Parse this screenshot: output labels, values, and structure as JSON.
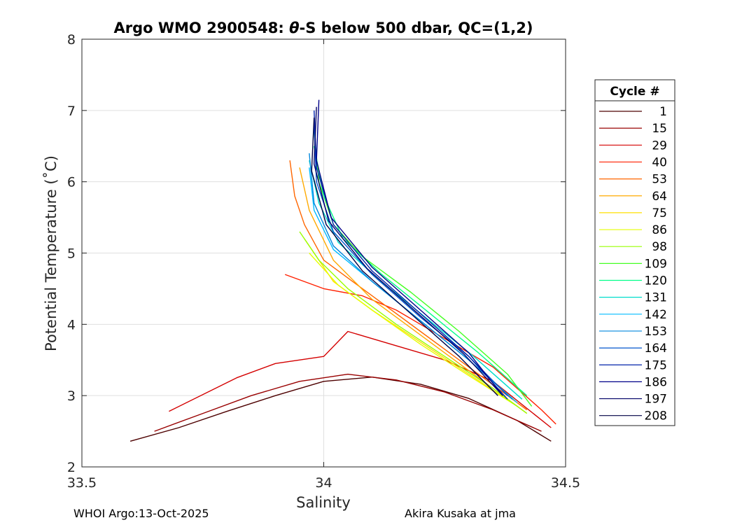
{
  "footer": {
    "left": "WHOI Argo:13-Oct-2025",
    "right": "Akira Kusaka at jma"
  },
  "chart_data": {
    "type": "line",
    "title": "Argo WMO 2900548: θ-S below 500 dbar,  QC=(1,2)",
    "title_parts": {
      "before": "Argo WMO 2900548: ",
      "symbol": "θ",
      "after": "-S below 500 dbar,  QC=(1,2)"
    },
    "xlabel": "Salinity",
    "ylabel": "Potential Temperature (˚C)",
    "xlim": [
      33.5,
      34.5
    ],
    "ylim": [
      2,
      8
    ],
    "xticks": [
      33.5,
      34,
      34.5
    ],
    "xtick_labels": [
      "33.5",
      "34",
      "34.5"
    ],
    "yticks": [
      2,
      3,
      4,
      5,
      6,
      7,
      8
    ],
    "ytick_labels": [
      "2",
      "3",
      "4",
      "5",
      "6",
      "7",
      "8"
    ],
    "grid": true,
    "legend": {
      "title": "Cycle #",
      "placement": "outside-right",
      "entries": [
        {
          "label": "1",
          "color": "#4d0000"
        },
        {
          "label": "15",
          "color": "#990000"
        },
        {
          "label": "29",
          "color": "#d40000"
        },
        {
          "label": "40",
          "color": "#ff2000"
        },
        {
          "label": "53",
          "color": "#ff6600"
        },
        {
          "label": "64",
          "color": "#ffaa00"
        },
        {
          "label": "75",
          "color": "#ffe000"
        },
        {
          "label": "86",
          "color": "#e6ff00"
        },
        {
          "label": "98",
          "color": "#99ff00"
        },
        {
          "label": "109",
          "color": "#44ff22"
        },
        {
          "label": "120",
          "color": "#00ff88"
        },
        {
          "label": "131",
          "color": "#00ddcc"
        },
        {
          "label": "142",
          "color": "#00bbff"
        },
        {
          "label": "153",
          "color": "#0088dd"
        },
        {
          "label": "164",
          "color": "#0055cc"
        },
        {
          "label": "175",
          "color": "#0022aa"
        },
        {
          "label": "186",
          "color": "#000088"
        },
        {
          "label": "197",
          "color": "#000066"
        },
        {
          "label": "208",
          "color": "#000044"
        }
      ]
    },
    "series": [
      {
        "name": "1",
        "color": "#4d0000",
        "points": [
          [
            33.6,
            2.36
          ],
          [
            33.7,
            2.55
          ],
          [
            33.8,
            2.78
          ],
          [
            33.9,
            3.0
          ],
          [
            34.0,
            3.2
          ],
          [
            34.1,
            3.26
          ],
          [
            34.2,
            3.16
          ],
          [
            34.3,
            2.96
          ],
          [
            34.4,
            2.65
          ],
          [
            34.47,
            2.36
          ]
        ]
      },
      {
        "name": "15",
        "color": "#990000",
        "points": [
          [
            33.65,
            2.5
          ],
          [
            33.75,
            2.75
          ],
          [
            33.85,
            3.0
          ],
          [
            33.95,
            3.2
          ],
          [
            34.05,
            3.3
          ],
          [
            34.15,
            3.22
          ],
          [
            34.25,
            3.05
          ],
          [
            34.35,
            2.8
          ],
          [
            34.45,
            2.5
          ]
        ]
      },
      {
        "name": "29",
        "color": "#d40000",
        "points": [
          [
            33.68,
            2.78
          ],
          [
            33.82,
            3.25
          ],
          [
            33.9,
            3.45
          ],
          [
            34.0,
            3.55
          ],
          [
            34.05,
            3.9
          ],
          [
            34.15,
            3.7
          ],
          [
            34.25,
            3.5
          ],
          [
            34.35,
            3.2
          ],
          [
            34.47,
            2.55
          ]
        ]
      },
      {
        "name": "40",
        "color": "#ff2000",
        "points": [
          [
            33.92,
            4.7
          ],
          [
            34.0,
            4.5
          ],
          [
            34.08,
            4.4
          ],
          [
            34.15,
            4.2
          ],
          [
            34.25,
            3.8
          ],
          [
            34.35,
            3.4
          ],
          [
            34.45,
            2.8
          ],
          [
            34.48,
            2.6
          ]
        ]
      },
      {
        "name": "53",
        "color": "#ff6600",
        "points": [
          [
            33.93,
            6.3
          ],
          [
            33.94,
            5.8
          ],
          [
            33.96,
            5.4
          ],
          [
            34.0,
            4.9
          ],
          [
            34.1,
            4.4
          ],
          [
            34.2,
            3.9
          ],
          [
            34.3,
            3.4
          ],
          [
            34.42,
            2.8
          ]
        ]
      },
      {
        "name": "64",
        "color": "#ffaa00",
        "points": [
          [
            33.95,
            6.2
          ],
          [
            33.97,
            5.6
          ],
          [
            34.02,
            4.9
          ],
          [
            34.1,
            4.35
          ],
          [
            34.2,
            3.85
          ],
          [
            34.3,
            3.35
          ],
          [
            34.42,
            2.75
          ]
        ]
      },
      {
        "name": "75",
        "color": "#ffe000",
        "points": [
          [
            33.96,
            5.2
          ],
          [
            34.02,
            4.6
          ],
          [
            34.1,
            4.2
          ],
          [
            34.2,
            3.75
          ],
          [
            34.3,
            3.3
          ],
          [
            34.4,
            2.85
          ]
        ]
      },
      {
        "name": "86",
        "color": "#e6ff00",
        "points": [
          [
            33.97,
            5.0
          ],
          [
            34.03,
            4.55
          ],
          [
            34.1,
            4.2
          ],
          [
            34.2,
            3.72
          ],
          [
            34.3,
            3.28
          ],
          [
            34.4,
            2.85
          ]
        ]
      },
      {
        "name": "98",
        "color": "#99ff00",
        "points": [
          [
            33.95,
            5.3
          ],
          [
            33.99,
            4.9
          ],
          [
            34.05,
            4.5
          ],
          [
            34.15,
            4.0
          ],
          [
            34.25,
            3.55
          ],
          [
            34.35,
            3.1
          ],
          [
            34.42,
            2.75
          ]
        ]
      },
      {
        "name": "109",
        "color": "#44ff22",
        "points": [
          [
            33.98,
            6.7
          ],
          [
            33.99,
            6.0
          ],
          [
            34.02,
            5.4
          ],
          [
            34.08,
            4.95
          ],
          [
            34.18,
            4.45
          ],
          [
            34.28,
            3.9
          ],
          [
            34.38,
            3.3
          ],
          [
            34.43,
            2.85
          ]
        ]
      },
      {
        "name": "120",
        "color": "#00ff88",
        "points": [
          [
            33.98,
            6.5
          ],
          [
            34.0,
            5.8
          ],
          [
            34.04,
            5.2
          ],
          [
            34.12,
            4.7
          ],
          [
            34.22,
            4.15
          ],
          [
            34.32,
            3.6
          ],
          [
            34.42,
            3.0
          ]
        ]
      },
      {
        "name": "131",
        "color": "#00ddcc",
        "points": [
          [
            33.97,
            6.3
          ],
          [
            33.99,
            5.7
          ],
          [
            34.03,
            5.15
          ],
          [
            34.11,
            4.65
          ],
          [
            34.21,
            4.1
          ],
          [
            34.31,
            3.55
          ],
          [
            34.41,
            2.95
          ]
        ]
      },
      {
        "name": "142",
        "color": "#00bbff",
        "points": [
          [
            33.97,
            6.2
          ],
          [
            33.98,
            5.6
          ],
          [
            34.02,
            5.05
          ],
          [
            34.1,
            4.6
          ],
          [
            34.2,
            4.05
          ],
          [
            34.3,
            3.5
          ],
          [
            34.4,
            2.9
          ]
        ]
      },
      {
        "name": "153",
        "color": "#0088dd",
        "points": [
          [
            33.97,
            6.4
          ],
          [
            33.98,
            5.7
          ],
          [
            34.02,
            5.1
          ],
          [
            34.1,
            4.6
          ],
          [
            34.2,
            4.05
          ],
          [
            34.3,
            3.5
          ],
          [
            34.39,
            2.95
          ]
        ]
      },
      {
        "name": "164",
        "color": "#0055cc",
        "points": [
          [
            33.98,
            6.8
          ],
          [
            33.985,
            6.0
          ],
          [
            34.02,
            5.3
          ],
          [
            34.1,
            4.7
          ],
          [
            34.2,
            4.1
          ],
          [
            34.3,
            3.55
          ],
          [
            34.38,
            3.0
          ]
        ]
      },
      {
        "name": "175",
        "color": "#0022aa",
        "points": [
          [
            33.98,
            7.0
          ],
          [
            33.985,
            6.2
          ],
          [
            34.02,
            5.4
          ],
          [
            34.1,
            4.75
          ],
          [
            34.2,
            4.15
          ],
          [
            34.3,
            3.55
          ],
          [
            34.38,
            2.95
          ]
        ]
      },
      {
        "name": "186",
        "color": "#000088",
        "points": [
          [
            33.99,
            7.15
          ],
          [
            33.985,
            6.3
          ],
          [
            34.015,
            5.5
          ],
          [
            34.1,
            4.8
          ],
          [
            34.2,
            4.2
          ],
          [
            34.3,
            3.6
          ],
          [
            34.37,
            3.0
          ]
        ]
      },
      {
        "name": "197",
        "color": "#000066",
        "points": [
          [
            33.985,
            7.05
          ],
          [
            33.98,
            6.25
          ],
          [
            34.01,
            5.45
          ],
          [
            34.09,
            4.78
          ],
          [
            34.19,
            4.18
          ],
          [
            34.29,
            3.58
          ],
          [
            34.37,
            3.0
          ]
        ]
      },
      {
        "name": "208",
        "color": "#000044",
        "points": [
          [
            33.98,
            6.9
          ],
          [
            33.975,
            6.15
          ],
          [
            34.005,
            5.4
          ],
          [
            34.08,
            4.75
          ],
          [
            34.18,
            4.15
          ],
          [
            34.28,
            3.55
          ],
          [
            34.36,
            3.0
          ]
        ]
      }
    ]
  }
}
